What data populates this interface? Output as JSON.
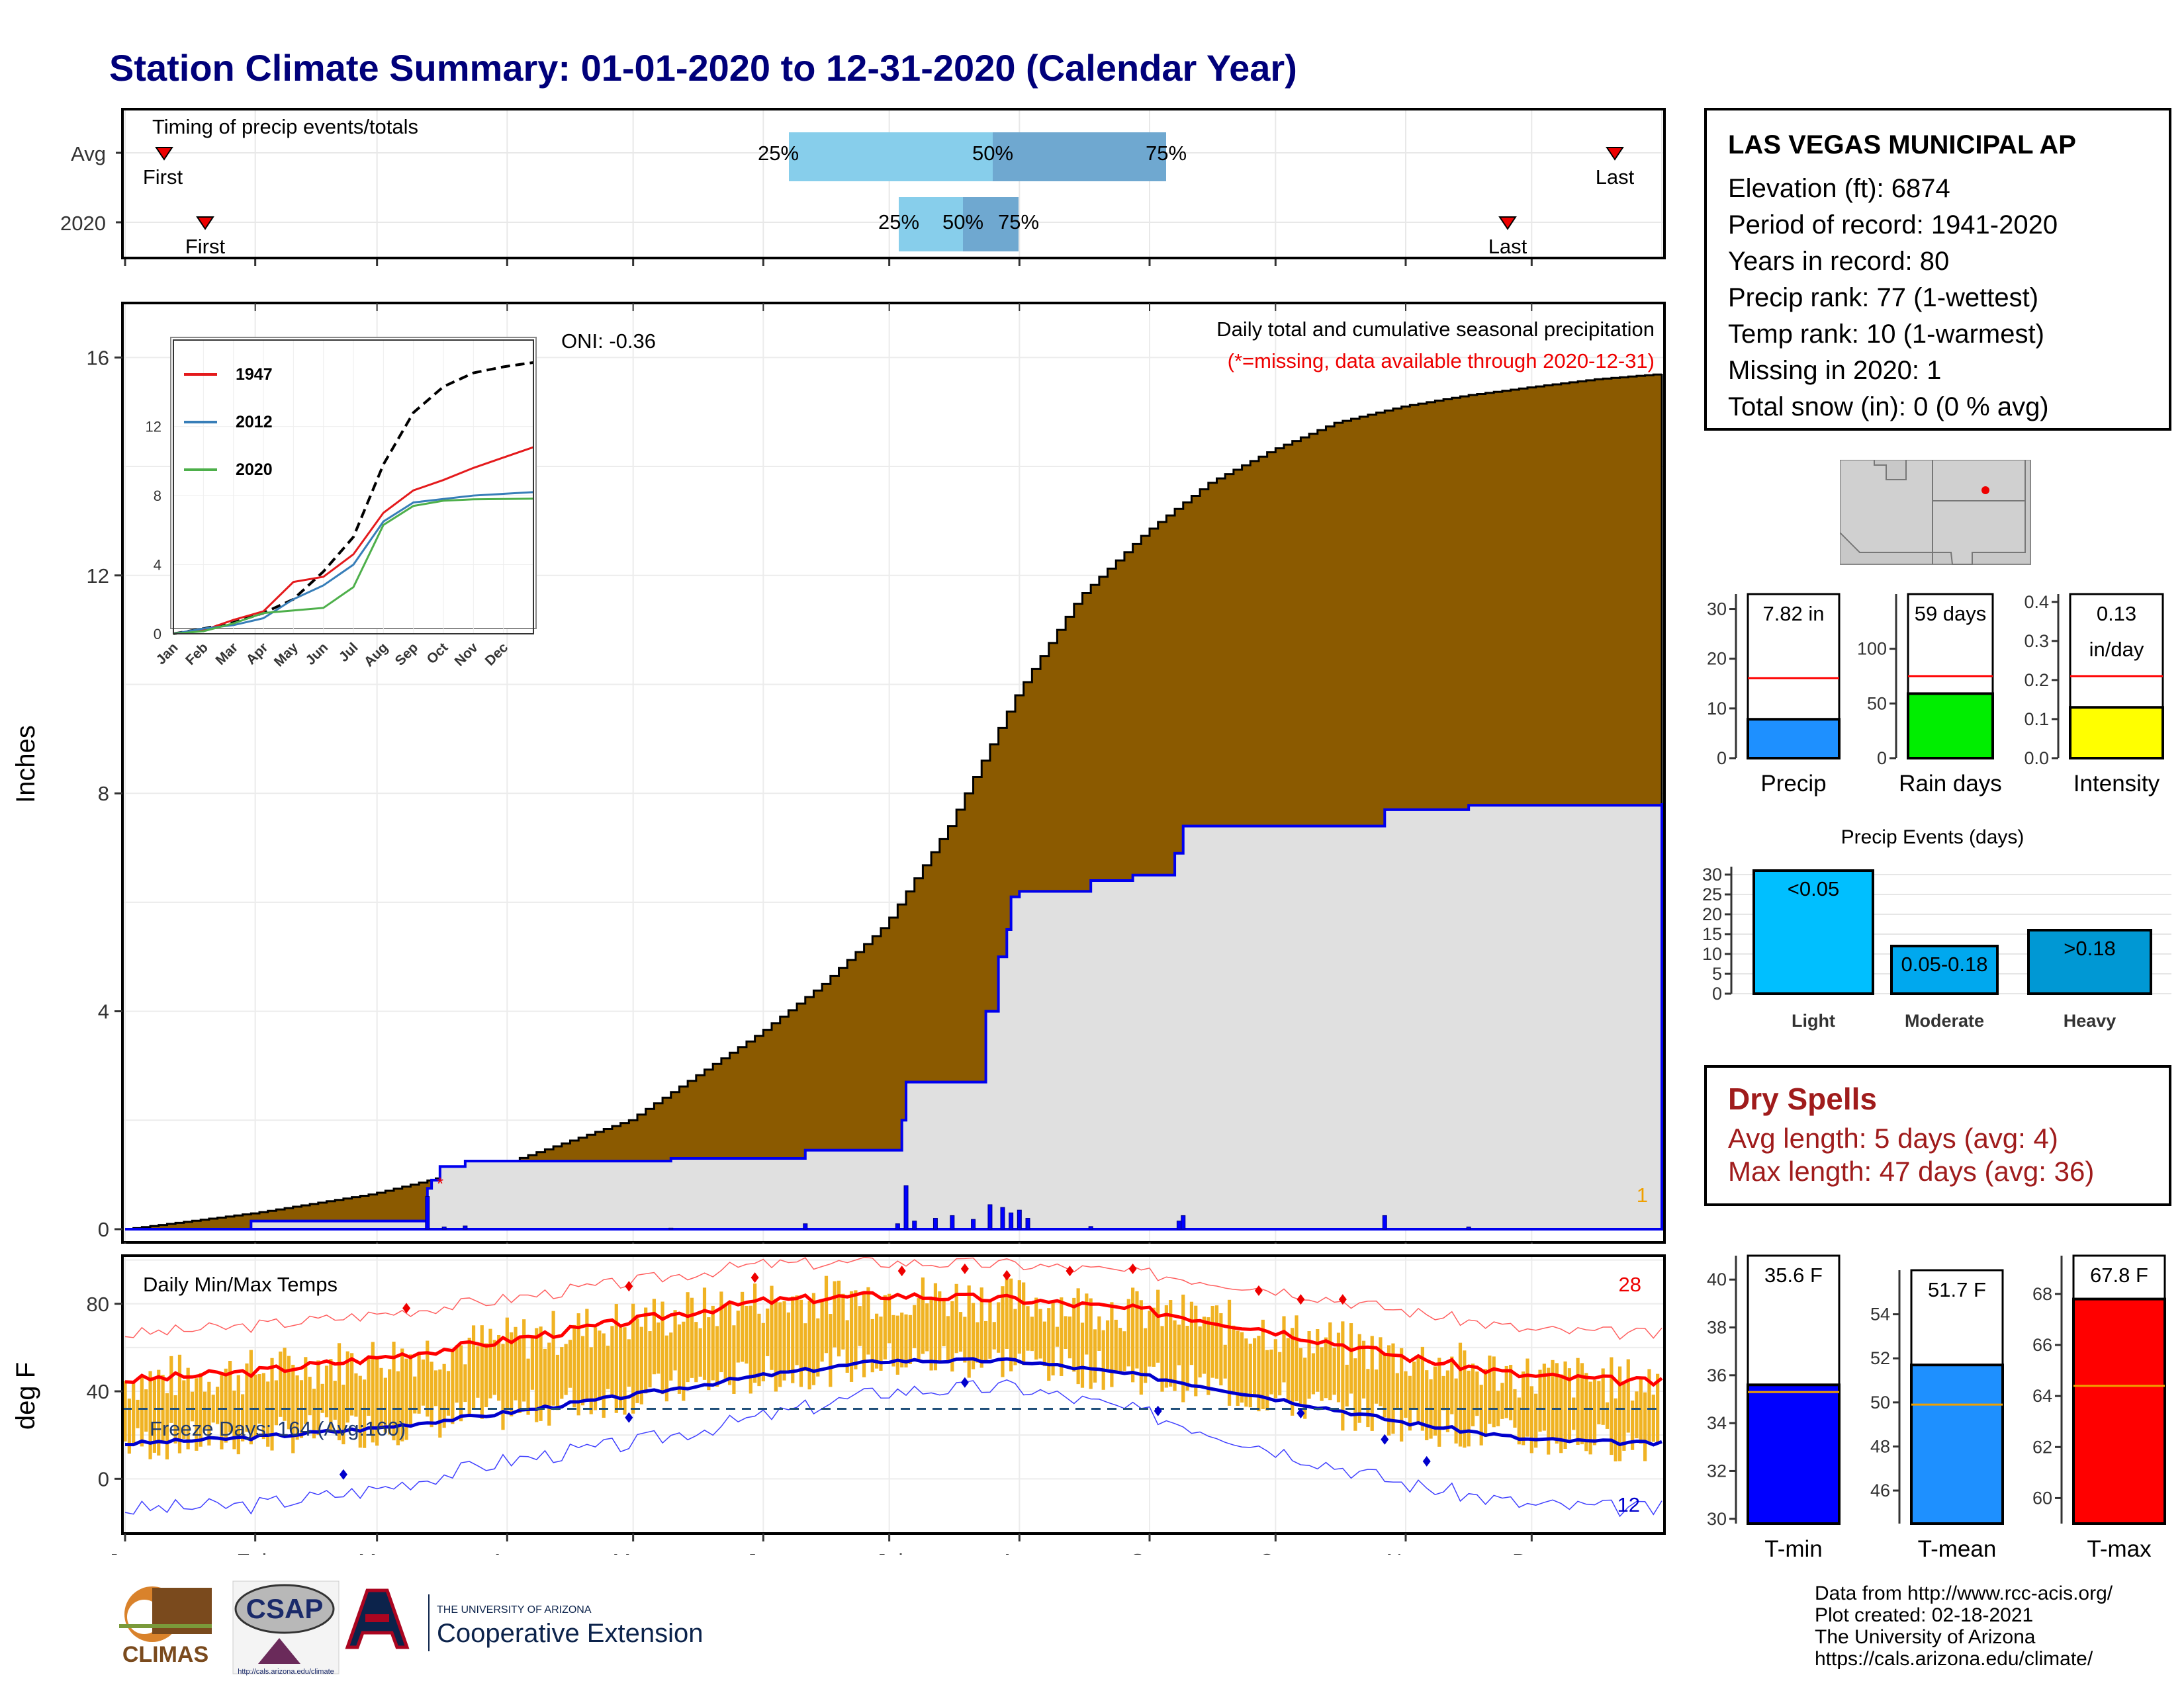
{
  "title": "Station Climate Summary: 01-01-2020 to 12-31-2020 (Calendar Year)",
  "colors": {
    "title": "#00007a",
    "cum_fill": "#8b5a00",
    "current_fill": "#e0e0e0",
    "precip_bar": "#0000ff",
    "temp_bar": "#f0b323",
    "max_line": "#ff0000",
    "min_line": "#0000cc",
    "dry_spells": "#a01c1c"
  },
  "timing_panel": {
    "label": "Timing of precip events/totals",
    "rows": [
      "Avg",
      "2020"
    ],
    "first_label": "First",
    "last_label": "Last",
    "pct_labels": [
      "25%",
      "50%",
      "75%"
    ]
  },
  "station": {
    "name": "LAS VEGAS MUNICIPAL AP",
    "lines": [
      "Elevation (ft): 6874",
      "Period of record: 1941-2020",
      "Years in record: 80",
      "Precip rank: 77 (1-wettest)",
      "Temp rank: 10 (1-warmest)",
      "Missing in 2020: 1",
      "Total snow (in): 0 (0 % avg)"
    ]
  },
  "precip_panel": {
    "ylabel": "Inches",
    "header": "Daily total and cumulative seasonal precipitation",
    "missing_note": "(*=missing, data available through 2020-12-31)",
    "oni": "ONI: -0.36",
    "missing_count": "1",
    "month_labels": [
      "Jan",
      "Feb",
      "Mar",
      "Apr",
      "May",
      "Jun",
      "Jul",
      "Aug",
      "Sep",
      "Oct",
      "Nov",
      "Dec"
    ]
  },
  "inset": {
    "legend": [
      "1947",
      "2012",
      "2020"
    ],
    "month_labels": [
      "Jan",
      "Feb",
      "Mar",
      "Apr",
      "May",
      "Jun",
      "Jul",
      "Aug",
      "Sep",
      "Oct",
      "Nov",
      "Dec"
    ]
  },
  "temp_panel": {
    "ylabel": "deg F",
    "header": "Daily Min/Max Temps",
    "freeze_label": "Freeze Days: 164 (Avg:160)",
    "record_high_count": "28",
    "record_low_count": "12"
  },
  "summary_bars": {
    "precip": {
      "value_label": "7.82 in",
      "label": "Precip"
    },
    "rain_days": {
      "value_label": "59 days",
      "label": "Rain days"
    },
    "intensity": {
      "value_label_1": "0.13",
      "value_label_2": "in/day",
      "label": "Intensity"
    }
  },
  "precip_events": {
    "title": "Precip Events (days)",
    "categories": [
      "Light",
      "Moderate",
      "Heavy"
    ],
    "bar_labels": [
      "<0.05",
      "0.05-0.18",
      ">0.18"
    ]
  },
  "dry_spells": {
    "title": "Dry Spells",
    "avg": "Avg length: 5 days (avg: 4)",
    "max": "Max length: 47 days (avg: 36)"
  },
  "temp_summary": {
    "tmin": {
      "value_label": "35.6 F",
      "label": "T-min"
    },
    "tmean": {
      "value_label": "51.7 F",
      "label": "T-mean"
    },
    "tmax": {
      "value_label": "67.8 F",
      "label": "T-max"
    }
  },
  "logos": {
    "climas": "CLIMAS",
    "csap": "CSAP",
    "ua_small": "THE UNIVERSITY OF ARIZONA",
    "ua_big": "Cooperative Extension",
    "csap_url": "http://cals.arizona.edu/climate"
  },
  "credits": [
    "Data from http://www.rcc-acis.org/",
    "Plot created: 02-18-2021",
    "The University of Arizona",
    "https://cals.arizona.edu/climate/"
  ],
  "chart_data": [
    {
      "type": "area",
      "title": "Daily total and cumulative seasonal precipitation",
      "ylabel": "Inches",
      "ylim": [
        0,
        17
      ],
      "x_months": [
        "Jan",
        "Feb",
        "Mar",
        "Apr",
        "May",
        "Jun",
        "Jul",
        "Aug",
        "Sep",
        "Oct",
        "Nov",
        "Dec"
      ],
      "series": [
        {
          "name": "Avg cumulative",
          "x_doy": [
            0,
            31,
            59,
            75,
            90,
            120,
            151,
            166,
            181,
            196,
            212,
            227,
            243,
            258,
            273,
            288,
            304,
            319,
            334,
            350,
            366
          ],
          "values": [
            0,
            0.3,
            0.65,
            0.95,
            1.2,
            2.0,
            3.6,
            4.5,
            5.6,
            7.4,
            9.8,
            11.6,
            12.8,
            13.7,
            14.3,
            14.8,
            15.1,
            15.3,
            15.45,
            15.6,
            15.7
          ]
        },
        {
          "name": "2020 cumulative",
          "x_doy": [
            0,
            30,
            59,
            72,
            73,
            75,
            81,
            130,
            162,
            185,
            186,
            205,
            208,
            210,
            211,
            213,
            230,
            240,
            250,
            252,
            300,
            320,
            366
          ],
          "values": [
            0,
            0.15,
            0.15,
            0.75,
            0.9,
            1.15,
            1.25,
            1.3,
            1.45,
            2.0,
            2.7,
            4.0,
            5.0,
            5.5,
            6.1,
            6.2,
            6.4,
            6.5,
            6.9,
            7.4,
            7.7,
            7.78,
            7.82
          ]
        }
      ],
      "daily_bars": {
        "x_doy": [
          72,
          76,
          81,
          130,
          162,
          186,
          184,
          188,
          193,
          197,
          202,
          206,
          209,
          211,
          213,
          215,
          230,
          252,
          251,
          300,
          320
        ],
        "values": [
          0.6,
          0.04,
          0.06,
          0.02,
          0.1,
          0.8,
          0.1,
          0.15,
          0.2,
          0.25,
          0.18,
          0.45,
          0.4,
          0.3,
          0.35,
          0.2,
          0.05,
          0.25,
          0.15,
          0.25,
          0.04
        ]
      }
    },
    {
      "type": "line",
      "title": "",
      "xlabel": "",
      "ylim": [
        0,
        17
      ],
      "x_months": [
        "Jan",
        "Feb",
        "Mar",
        "Apr",
        "May",
        "Jun",
        "Jul",
        "Aug",
        "Sep",
        "Oct",
        "Nov",
        "Dec"
      ],
      "series": [
        {
          "name": "",
          "x_month": [
            0,
            1,
            2,
            3,
            4,
            5,
            6,
            7,
            8,
            9,
            10,
            11,
            12
          ],
          "values": [
            0,
            0.3,
            0.65,
            1.2,
            2.0,
            3.6,
            5.6,
            9.8,
            12.8,
            14.3,
            15.1,
            15.45,
            15.7
          ]
        },
        {
          "name": "1947",
          "x_month": [
            0,
            1,
            2,
            3,
            4,
            5,
            6,
            7,
            8,
            9,
            10,
            11,
            12
          ],
          "values": [
            0,
            0.2,
            0.8,
            1.3,
            3.0,
            3.3,
            4.6,
            7.0,
            8.3,
            8.9,
            9.6,
            10.2,
            10.8
          ]
        },
        {
          "name": "2012",
          "x_month": [
            0,
            1,
            2,
            3,
            4,
            5,
            6,
            7,
            8,
            9,
            10,
            11,
            12
          ],
          "values": [
            0,
            0.3,
            0.5,
            0.9,
            2.0,
            2.8,
            4.0,
            6.5,
            7.6,
            7.8,
            8.0,
            8.1,
            8.2
          ]
        },
        {
          "name": "2020",
          "x_month": [
            0,
            1,
            2,
            3,
            4,
            5,
            6,
            7,
            8,
            9,
            10,
            11,
            12
          ],
          "values": [
            0,
            0.15,
            0.6,
            1.2,
            1.35,
            1.5,
            2.7,
            6.3,
            7.4,
            7.7,
            7.78,
            7.8,
            7.82
          ]
        }
      ]
    },
    {
      "type": "line",
      "title": "Daily Min/Max Temps",
      "ylabel": "deg F",
      "ylim": [
        -25,
        102
      ],
      "x_months": [
        "Jan",
        "Feb",
        "Mar",
        "Apr",
        "May",
        "Jun",
        "Jul",
        "Aug",
        "Sep",
        "Oct",
        "Nov",
        "Dec"
      ],
      "series": [
        {
          "name": "Avg max",
          "x_doy": [
            0,
            31,
            59,
            90,
            120,
            151,
            181,
            212,
            243,
            273,
            304,
            334,
            366
          ],
          "values": [
            45,
            49,
            55,
            63,
            72,
            81,
            84,
            82,
            77,
            68,
            56,
            47,
            44
          ]
        },
        {
          "name": "Avg min",
          "x_doy": [
            0,
            31,
            59,
            90,
            120,
            151,
            181,
            212,
            243,
            273,
            304,
            334,
            366
          ],
          "values": [
            16,
            19,
            23,
            30,
            38,
            47,
            54,
            54,
            47,
            37,
            26,
            18,
            16
          ]
        },
        {
          "name": "Record max",
          "x_doy": [
            0,
            31,
            59,
            90,
            120,
            151,
            181,
            212,
            243,
            273,
            304,
            334,
            366
          ],
          "values": [
            66,
            70,
            75,
            82,
            90,
            98,
            99,
            98,
            94,
            87,
            77,
            68,
            66
          ]
        },
        {
          "name": "Record min",
          "x_doy": [
            0,
            31,
            59,
            90,
            120,
            151,
            181,
            212,
            243,
            273,
            304,
            334,
            366
          ],
          "values": [
            -14,
            -12,
            -5,
            8,
            16,
            28,
            40,
            42,
            30,
            14,
            -2,
            -12,
            -14
          ]
        }
      ],
      "freeze_line": 32
    },
    {
      "type": "bar",
      "categories": [
        "Precip",
        "Rain days",
        "Intensity"
      ],
      "values": [
        7.82,
        59,
        0.13
      ],
      "avg_markers": [
        16.1,
        75,
        0.21
      ],
      "ylims": [
        [
          0,
          33
        ],
        [
          0,
          150
        ],
        [
          0,
          0.42
        ]
      ]
    },
    {
      "type": "bar",
      "title": "Precip Events (days)",
      "categories": [
        "Light",
        "Moderate",
        "Heavy"
      ],
      "values": [
        31,
        12,
        16
      ],
      "ylim": [
        0,
        32
      ]
    },
    {
      "type": "bar",
      "categories": [
        "T-min",
        "T-mean",
        "T-max"
      ],
      "values": [
        35.6,
        51.7,
        67.8
      ],
      "avg_markers": [
        35.3,
        49.9,
        64.4
      ],
      "ylims": [
        [
          29.8,
          41
        ],
        [
          44.5,
          56
        ],
        [
          59,
          69.5
        ]
      ]
    }
  ]
}
